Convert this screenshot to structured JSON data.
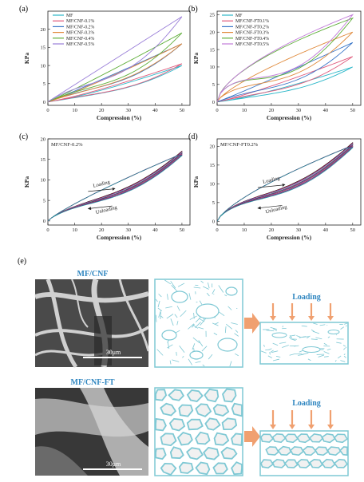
{
  "chart_data": [
    {
      "id": "a",
      "panel_label": "(a)",
      "type": "line",
      "xlabel": "Compression (%)",
      "ylabel": "KPa",
      "xlim": [
        0,
        53
      ],
      "ylim": [
        -1,
        25
      ],
      "xticks": [
        0,
        10,
        20,
        30,
        40,
        50
      ],
      "yticks": [
        0,
        5,
        10,
        15,
        20
      ],
      "legend_position": "top-left",
      "series": [
        {
          "name": "MF",
          "color": "#2bb7c9",
          "peak": 10,
          "curv": 1.25,
          "gap": 0.26
        },
        {
          "name": "MF/CNF-0.1%",
          "color": "#e05a7c",
          "peak": 10.5,
          "curv": 1.2,
          "gap": 0.3
        },
        {
          "name": "MF/CNF-0.2%",
          "color": "#3a76c8",
          "peak": 16,
          "curv": 1.05,
          "gap": 0.32
        },
        {
          "name": "MF/CNF-0.3%",
          "color": "#e08a3c",
          "peak": 16,
          "curv": 1.1,
          "gap": 0.28
        },
        {
          "name": "MF/CNF-0.4%",
          "color": "#5fae3a",
          "peak": 19,
          "curv": 1.05,
          "gap": 0.35
        },
        {
          "name": "MF/CNF-0.5%",
          "color": "#9a7fd8",
          "peak": 23.5,
          "curv": 1.0,
          "gap": 0.38
        }
      ]
    },
    {
      "id": "b",
      "panel_label": "(b)",
      "type": "line",
      "xlabel": "Compression (%)",
      "ylabel": "KPa",
      "xlim": [
        0,
        53
      ],
      "ylim": [
        -1,
        26
      ],
      "xticks": [
        0,
        10,
        20,
        30,
        40,
        50
      ],
      "yticks": [
        0,
        5,
        10,
        15,
        20,
        25
      ],
      "legend_position": "top-left",
      "series": [
        {
          "name": "MF",
          "color": "#2bb7c9",
          "peak": 10,
          "curv": 1.25,
          "gap": 0.28
        },
        {
          "name": "MF/CNF-FT0.1%",
          "color": "#e05a7c",
          "peak": 13,
          "curv": 1.15,
          "gap": 0.33
        },
        {
          "name": "MF/CNF-FT0.2%",
          "color": "#3a76c8",
          "peak": 17,
          "curv": 1.05,
          "gap": 0.38
        },
        {
          "name": "MF/CNF-FT0.3%",
          "color": "#e08a3c",
          "peak": 20,
          "curv": 0.75,
          "gap": 0.42
        },
        {
          "name": "MF/CNF-FT0.4%",
          "color": "#5fae3a",
          "peak": 24,
          "curv": 0.6,
          "gap": 0.5
        },
        {
          "name": "MF/CNF-FT0.5%",
          "color": "#c07ad8",
          "peak": 25,
          "curv": 0.62,
          "gap": 0.48
        }
      ]
    },
    {
      "id": "c",
      "panel_label": "(c)",
      "type": "line",
      "xlabel": "Compression (%)",
      "ylabel": "KPa",
      "xlim": [
        0,
        53
      ],
      "ylim": [
        -1,
        20
      ],
      "xticks": [
        0,
        10,
        20,
        30,
        40,
        50
      ],
      "yticks": [
        0,
        5,
        10,
        15,
        20
      ],
      "sample_label": "MF/CNF-0.2%",
      "annotations": [
        "Loading",
        "Unloading"
      ],
      "cycles": {
        "count": 12,
        "peak": 17,
        "curv": 0.85,
        "gap": 0.3,
        "colors": [
          "#000000",
          "#d02020",
          "#2040d0",
          "#e06ad0",
          "#60c040",
          "#101080",
          "#a020a0",
          "#806020",
          "#c040c0",
          "#404040",
          "#7030a0",
          "#20a0a0"
        ]
      }
    },
    {
      "id": "d",
      "panel_label": "(d)",
      "type": "line",
      "xlabel": "Compression (%)",
      "ylabel": "KPa",
      "xlim": [
        0,
        53
      ],
      "ylim": [
        -1,
        22
      ],
      "xticks": [
        0,
        10,
        20,
        30,
        40,
        50
      ],
      "yticks": [
        0,
        5,
        10,
        15,
        20
      ],
      "sample_label": "MF/CNF-FT0.2%",
      "annotations": [
        "Loading",
        "Unloading"
      ],
      "cycles": {
        "count": 12,
        "peak": 21,
        "curv": 0.72,
        "gap": 0.32,
        "colors": [
          "#000000",
          "#d02020",
          "#2040d0",
          "#e06ad0",
          "#60c040",
          "#101080",
          "#a020a0",
          "#806020",
          "#c040c0",
          "#404040",
          "#7030a0",
          "#20a0a0"
        ]
      }
    }
  ],
  "panel_e": {
    "label": "(e)",
    "row1": {
      "sample": "MF/CNF",
      "scale_bar": "30μm",
      "loading": "Loading"
    },
    "row2": {
      "sample": "MF/CNF-FT",
      "scale_bar": "30μm",
      "loading": "Loading"
    },
    "colors": {
      "network": "#7ec8d4",
      "arrow": "#f0a070",
      "label": "#2f86c0"
    }
  }
}
